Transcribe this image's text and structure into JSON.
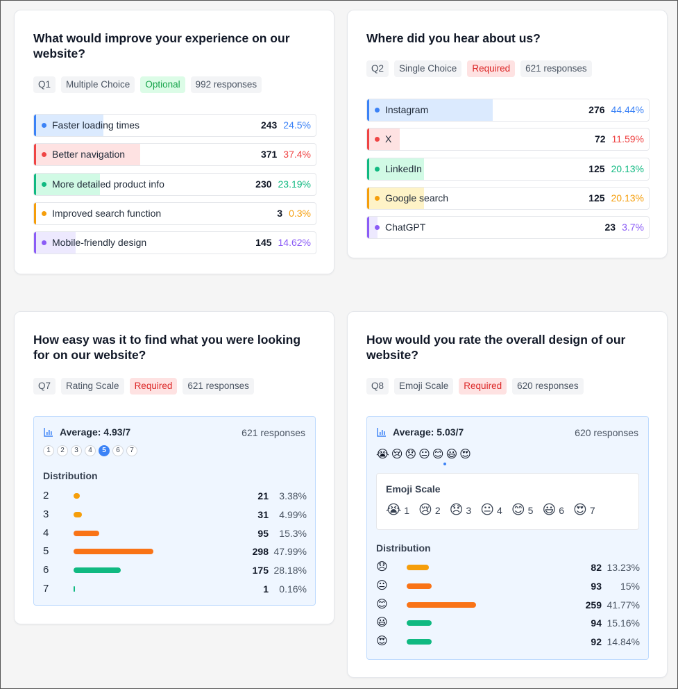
{
  "colors": {
    "blue": "#3b82f6",
    "red": "#ef4444",
    "green": "#10b981",
    "amber": "#f59e0b",
    "purple": "#8b5cf6",
    "orange": "#f97316",
    "required_bg": "#fee2e2",
    "optional_bg": "#dcfce7"
  },
  "q1": {
    "title": "What would improve your experience on our website?",
    "tags": {
      "id": "Q1",
      "type": "Multiple Choice",
      "status": "Optional",
      "responses": "992 responses"
    },
    "options": [
      {
        "label": "Faster loading times",
        "count": "243",
        "percent": "24.5%",
        "share": 0.245,
        "color": "#3b82f6",
        "fill": "#dbeafe"
      },
      {
        "label": "Better navigation",
        "count": "371",
        "percent": "37.4%",
        "share": 0.374,
        "color": "#ef4444",
        "fill": "#fee2e2"
      },
      {
        "label": "More detailed product info",
        "count": "230",
        "percent": "23.19%",
        "share": 0.2319,
        "color": "#10b981",
        "fill": "#d1fae5"
      },
      {
        "label": "Improved search function",
        "count": "3",
        "percent": "0.3%",
        "share": 0.003,
        "color": "#f59e0b",
        "fill": "#fef3c7"
      },
      {
        "label": "Mobile-friendly design",
        "count": "145",
        "percent": "14.62%",
        "share": 0.1462,
        "color": "#8b5cf6",
        "fill": "#ede9fe"
      }
    ]
  },
  "q2": {
    "title": "Where did you hear about us?",
    "tags": {
      "id": "Q2",
      "type": "Single Choice",
      "status": "Required",
      "responses": "621 responses"
    },
    "options": [
      {
        "label": "Instagram",
        "count": "276",
        "percent": "44.44%",
        "share": 0.4444,
        "color": "#3b82f6",
        "fill": "#dbeafe"
      },
      {
        "label": "X",
        "count": "72",
        "percent": "11.59%",
        "share": 0.1159,
        "color": "#ef4444",
        "fill": "#fee2e2"
      },
      {
        "label": "LinkedIn",
        "count": "125",
        "percent": "20.13%",
        "share": 0.2013,
        "color": "#10b981",
        "fill": "#d1fae5"
      },
      {
        "label": "Google search",
        "count": "125",
        "percent": "20.13%",
        "share": 0.2013,
        "color": "#f59e0b",
        "fill": "#fef3c7"
      },
      {
        "label": "ChatGPT",
        "count": "23",
        "percent": "3.7%",
        "share": 0.037,
        "color": "#8b5cf6",
        "fill": "#ede9fe"
      }
    ]
  },
  "q7": {
    "title": "How easy was it to find what you were looking for on our website?",
    "tags": {
      "id": "Q7",
      "type": "Rating Scale",
      "status": "Required",
      "responses": "621 responses"
    },
    "average": "Average: 4.93/7",
    "responses": "621 responses",
    "scale": [
      "1",
      "2",
      "3",
      "4",
      "5",
      "6",
      "7"
    ],
    "active": "5",
    "distribution_title": "Distribution",
    "distribution": [
      {
        "key": "2",
        "count": "21",
        "percent": "3.38%",
        "share": 0.0338,
        "color": "#f59e0b"
      },
      {
        "key": "3",
        "count": "31",
        "percent": "4.99%",
        "share": 0.0499,
        "color": "#f59e0b"
      },
      {
        "key": "4",
        "count": "95",
        "percent": "15.3%",
        "share": 0.153,
        "color": "#f97316"
      },
      {
        "key": "5",
        "count": "298",
        "percent": "47.99%",
        "share": 0.4799,
        "color": "#f97316"
      },
      {
        "key": "6",
        "count": "175",
        "percent": "28.18%",
        "share": 0.2818,
        "color": "#10b981"
      },
      {
        "key": "7",
        "count": "1",
        "percent": "0.16%",
        "share": 0.0016,
        "color": "#10b981"
      }
    ]
  },
  "q8": {
    "title": "How would you rate the overall design of our website?",
    "tags": {
      "id": "Q8",
      "type": "Emoji Scale",
      "status": "Required",
      "responses": "620 responses"
    },
    "average": "Average: 5.03/7",
    "responses": "620 responses",
    "emojis": [
      "😭",
      "😢",
      "😞",
      "😐",
      "😊",
      "😃",
      "😍"
    ],
    "emoji_box_title": "Emoji Scale",
    "emoji_scale": [
      {
        "emoji": "😭",
        "value": "1"
      },
      {
        "emoji": "😢",
        "value": "2"
      },
      {
        "emoji": "😞",
        "value": "3"
      },
      {
        "emoji": "😐",
        "value": "4"
      },
      {
        "emoji": "😊",
        "value": "5"
      },
      {
        "emoji": "😃",
        "value": "6"
      },
      {
        "emoji": "😍",
        "value": "7"
      }
    ],
    "distribution_title": "Distribution",
    "distribution": [
      {
        "emoji": "😞",
        "count": "82",
        "percent": "13.23%",
        "share": 0.1323,
        "color": "#f59e0b"
      },
      {
        "emoji": "😐",
        "count": "93",
        "percent": "15%",
        "share": 0.15,
        "color": "#f97316"
      },
      {
        "emoji": "😊",
        "count": "259",
        "percent": "41.77%",
        "share": 0.4177,
        "color": "#f97316"
      },
      {
        "emoji": "😃",
        "count": "94",
        "percent": "15.16%",
        "share": 0.1516,
        "color": "#10b981"
      },
      {
        "emoji": "😍",
        "count": "92",
        "percent": "14.84%",
        "share": 0.1484,
        "color": "#10b981"
      }
    ]
  }
}
